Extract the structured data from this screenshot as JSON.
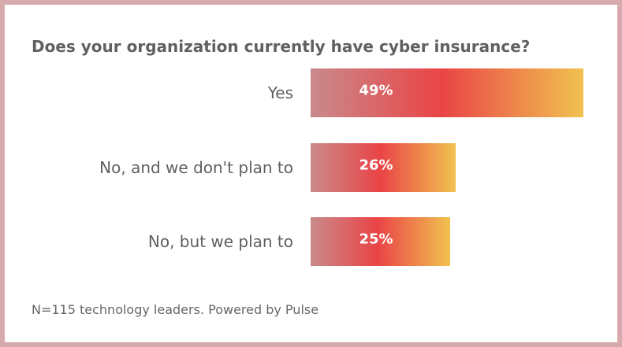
{
  "chart_data": {
    "type": "bar",
    "orientation": "horizontal",
    "title": "Does your organization currently have cyber insurance?",
    "categories": [
      "Yes",
      "No, and we don't plan to",
      "No, but we plan to"
    ],
    "values": [
      49,
      26,
      25
    ],
    "value_labels": [
      "49%",
      "26%",
      "25%"
    ],
    "unit": "%",
    "xlim": [
      0,
      49
    ],
    "grid": false,
    "legend": "none",
    "footnote": "N=115 technology leaders. Powered by Pulse"
  },
  "colors": {
    "bar_gradient_start": "#c98a8c",
    "bar_gradient_mid": "#ea4446",
    "bar_gradient_end": "#f1c250",
    "label_text": "#5f5f5f",
    "value_text": "#ffffff",
    "frame": "#d6a9ad"
  }
}
